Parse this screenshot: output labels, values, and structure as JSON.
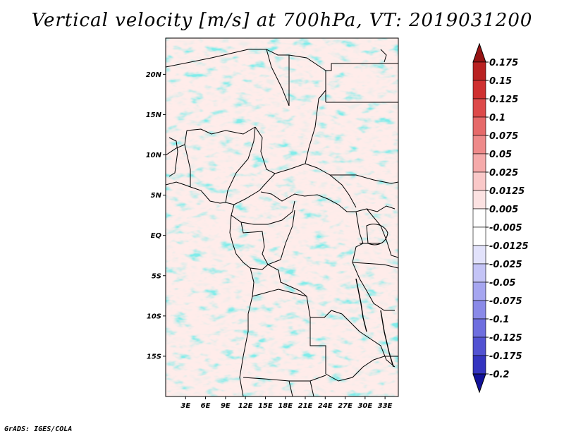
{
  "title": "Vertical velocity [m/s] at 700hPa, VT: 2019031200",
  "credit": "GrADS: IGES/COLA",
  "map": {
    "lon_range": [
      0,
      35
    ],
    "lat_range": [
      -20,
      24.5
    ],
    "lat_ticks": [
      {
        "label": "20N",
        "value": 20
      },
      {
        "label": "15N",
        "value": 15
      },
      {
        "label": "10N",
        "value": 10
      },
      {
        "label": "5N",
        "value": 5
      },
      {
        "label": "EQ",
        "value": 0
      },
      {
        "label": "5S",
        "value": -5
      },
      {
        "label": "10S",
        "value": -10
      },
      {
        "label": "15S",
        "value": -15
      }
    ],
    "lon_ticks": [
      {
        "label": "3E",
        "value": 3
      },
      {
        "label": "6E",
        "value": 6
      },
      {
        "label": "9E",
        "value": 9
      },
      {
        "label": "12E",
        "value": 12
      },
      {
        "label": "15E",
        "value": 15
      },
      {
        "label": "18E",
        "value": 18
      },
      {
        "label": "21E",
        "value": 21
      },
      {
        "label": "24E",
        "value": 24
      },
      {
        "label": "27E",
        "value": 27
      },
      {
        "label": "30E",
        "value": 30
      },
      {
        "label": "33E",
        "value": 33
      }
    ]
  },
  "colorbar": {
    "levels": [
      {
        "label": "0.175",
        "color": "#a01818"
      },
      {
        "label": "0.15",
        "color": "#b92222"
      },
      {
        "label": "0.125",
        "color": "#cf3030"
      },
      {
        "label": "0.1",
        "color": "#dd4a4a"
      },
      {
        "label": "0.075",
        "color": "#e66a6a"
      },
      {
        "label": "0.05",
        "color": "#ee8a8a"
      },
      {
        "label": "0.025",
        "color": "#f5aaaa"
      },
      {
        "label": "0.0125",
        "color": "#f9c8c8"
      },
      {
        "label": "0.005",
        "color": "#fce2e2"
      },
      {
        "label": "-0.005",
        "color": "#ffffff"
      },
      {
        "label": "-0.0125",
        "color": "#e2e2fb"
      },
      {
        "label": "-0.025",
        "color": "#c4c4f6"
      },
      {
        "label": "-0.05",
        "color": "#a6a6f0"
      },
      {
        "label": "-0.075",
        "color": "#8a8ae8"
      },
      {
        "label": "-0.1",
        "color": "#6e6edf"
      },
      {
        "label": "-0.125",
        "color": "#5252d2"
      },
      {
        "label": "-0.175",
        "color": "#3434c0"
      },
      {
        "label": "-0.2",
        "color": "#1c1ca8"
      }
    ],
    "top_color": "#961414",
    "bottom_color": "#12129a"
  }
}
